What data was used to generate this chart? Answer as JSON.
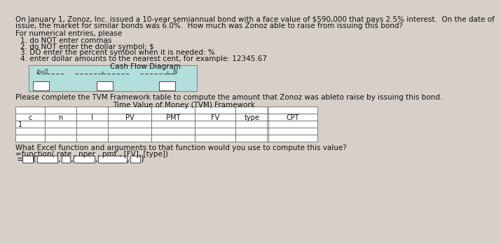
{
  "bg_color": "#d6d0c8",
  "title_line1": "On January 1, Zonoz, Inc. issued a 10-year semiannual bond with a face value of $590,000 that pays 2.5% interest.  On the date of",
  "title_line2": "issue, the market for similar bonds was 6.0%.  How much was Zonoz able to raise from issuing this bond?",
  "instructions_header": "For numerical entries, please",
  "instructions": [
    "1. do NOT enter commas",
    "2. do NOT enter the dollar symbol: $",
    "3. DO enter the percent symbol when it is needed: %",
    "4. enter dollar amounts to the nearest cent, for example: 12345.67"
  ],
  "cash_flow_title": "Cash Flow Diagram",
  "cash_flow_bg": "#b2dfdb",
  "t0_label": "t=0",
  "N_label": "N",
  "dots_label": "...",
  "tvm_title": "Time Value of Money (TVM) Framework",
  "tvm_headers": [
    "c",
    "n",
    "I",
    "PV",
    "PMT",
    "FV",
    "type",
    "CPT"
  ],
  "tvm_row1_label": "1",
  "excel_q": "What Excel function and arguments to that function would you use to compute this value?",
  "excel_syntax": "=function( rate , nper , pmt , [FV], [type])",
  "white": "#ffffff",
  "light_gray": "#f0f0f0"
}
